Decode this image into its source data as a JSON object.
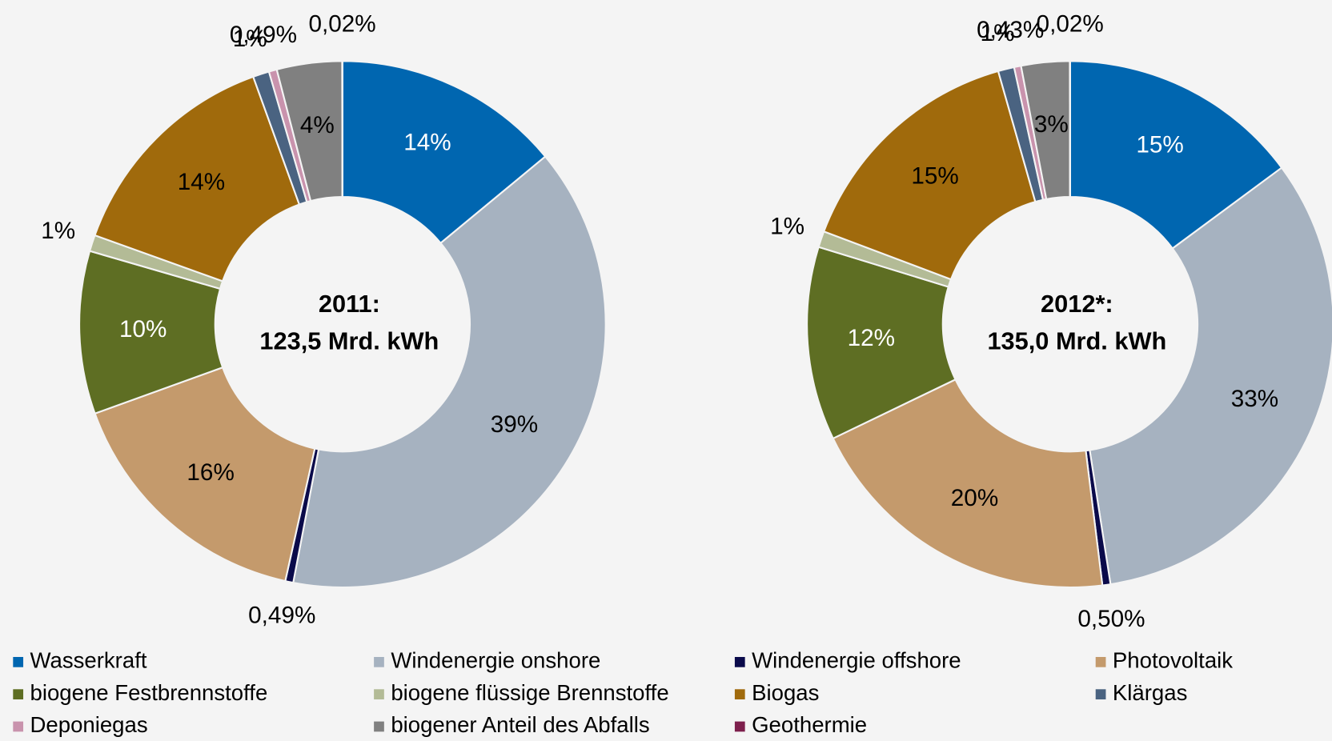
{
  "categories": [
    "Wasserkraft",
    "Windenergie onshore",
    "Windenergie offshore",
    "Photovoltaik",
    "biogene Festbrennstoffe",
    "biogene flüssige Brennstoffe",
    "Biogas",
    "Klärgas",
    "Deponiegas",
    "biogener Anteil des Abfalls",
    "Geothermie"
  ],
  "colors": [
    "#0066b0",
    "#a6b2c0",
    "#0a0a4a",
    "#c49a6c",
    "#5e6e23",
    "#b3bb96",
    "#a06a0c",
    "#4a6381",
    "#c993ad",
    "#808080",
    "#7d1f4c"
  ],
  "chart_data": [
    {
      "type": "pie",
      "center_text": [
        "2011:",
        "123,5 Mrd. kWh"
      ],
      "values": [
        14,
        39,
        0.49,
        16,
        10,
        1,
        14,
        1,
        0.49,
        4,
        0.02
      ],
      "value_labels": [
        "14%",
        "39%",
        "0,49%",
        "16%",
        "10%",
        "1%",
        "14%",
        "1%",
        "0,49%",
        "4%",
        "0,02%"
      ]
    },
    {
      "type": "pie",
      "center_text": [
        "2012*:",
        "135,0 Mrd. kWh"
      ],
      "values": [
        15,
        33,
        0.5,
        20,
        12,
        1,
        15,
        1,
        0.43,
        3,
        0.02
      ],
      "value_labels": [
        "15%",
        "33%",
        "0,50%",
        "20%",
        "12%",
        "1%",
        "15%",
        "1%",
        "0,43%",
        "3%",
        "0,02%"
      ]
    }
  ]
}
